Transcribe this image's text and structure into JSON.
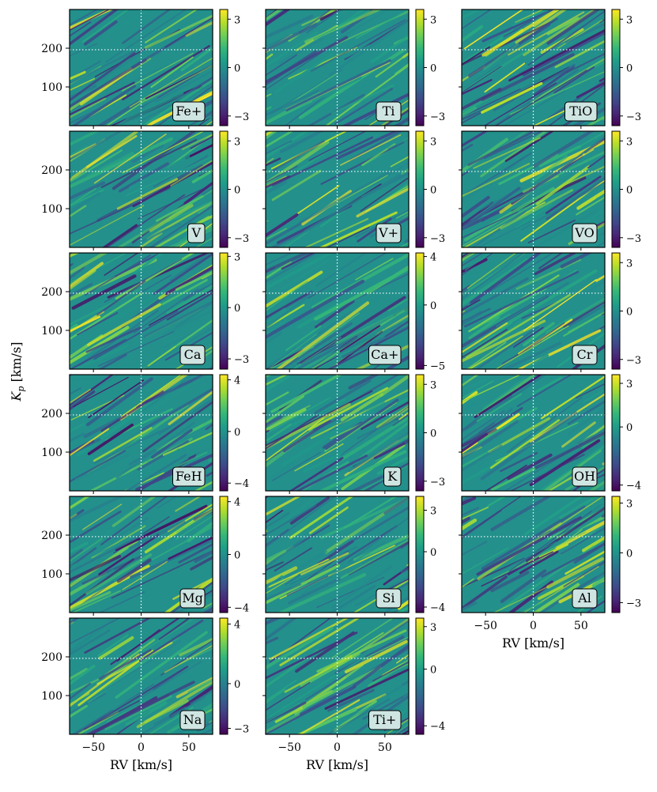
{
  "chart_data": {
    "type": "heatmap",
    "description": "Grid of Kp-RV cross-correlation significance maps, one per species",
    "x_axis": {
      "label": "RV [km/s]",
      "range": [
        -75,
        75
      ],
      "ticks": [
        -50,
        0,
        50
      ],
      "tick_labels": [
        "−50",
        "0",
        "50"
      ]
    },
    "y_axis": {
      "label": "K_p [km/s]",
      "label_main": "K",
      "label_sub": "p",
      "label_units": " [km/s]",
      "range": [
        0,
        300
      ],
      "ticks": [
        100,
        200
      ],
      "tick_labels": [
        "100",
        "200"
      ]
    },
    "markers": {
      "rv": 0,
      "kp": 196
    },
    "colormap": {
      "name": "viridis",
      "stops": [
        "#440154",
        "#482878",
        "#3e4a89",
        "#31688e",
        "#26828e",
        "#1f9e89",
        "#35b779",
        "#6ece58",
        "#b5de2b",
        "#fde725"
      ]
    },
    "panels": [
      {
        "species": "Fe+",
        "cb_range": [
          -3.6,
          3.6
        ],
        "cb_ticks": [
          3,
          0,
          -3
        ],
        "cb_tick_labels": [
          "3",
          "0",
          "−3"
        ]
      },
      {
        "species": "Ti",
        "cb_range": [
          -3.6,
          3.6
        ],
        "cb_ticks": [
          3,
          0,
          -3
        ],
        "cb_tick_labels": [
          "3",
          "0",
          "−3"
        ]
      },
      {
        "species": "TiO",
        "cb_range": [
          -3.6,
          3.6
        ],
        "cb_ticks": [
          3,
          0,
          -3
        ],
        "cb_tick_labels": [
          "3",
          "0",
          "−3"
        ]
      },
      {
        "species": "V",
        "cb_range": [
          -3.6,
          3.6
        ],
        "cb_ticks": [
          3,
          0,
          -3
        ],
        "cb_tick_labels": [
          "3",
          "0",
          "−3"
        ]
      },
      {
        "species": "V+",
        "cb_range": [
          -3.6,
          3.6
        ],
        "cb_ticks": [
          3,
          0,
          -3
        ],
        "cb_tick_labels": [
          "3",
          "0",
          "−3"
        ]
      },
      {
        "species": "VO",
        "cb_range": [
          -3.6,
          3.6
        ],
        "cb_ticks": [
          3,
          0,
          -3
        ],
        "cb_tick_labels": [
          "3",
          "0",
          "−3"
        ]
      },
      {
        "species": "Ca",
        "cb_range": [
          -3.6,
          3.2
        ],
        "cb_ticks": [
          3,
          0,
          -3
        ],
        "cb_tick_labels": [
          "3",
          "0",
          "−3"
        ]
      },
      {
        "species": "Ca+",
        "cb_range": [
          -5.3,
          4.3
        ],
        "cb_ticks": [
          4,
          0,
          -5
        ],
        "cb_tick_labels": [
          "4",
          "0",
          "−5"
        ]
      },
      {
        "species": "Cr",
        "cb_range": [
          -3.6,
          3.6
        ],
        "cb_ticks": [
          3,
          0,
          -3
        ],
        "cb_tick_labels": [
          "3",
          "0",
          "−3"
        ]
      },
      {
        "species": "FeH",
        "cb_range": [
          -4.6,
          4.4
        ],
        "cb_ticks": [
          4,
          0,
          -4
        ],
        "cb_tick_labels": [
          "4",
          "0",
          "−4"
        ]
      },
      {
        "species": "K",
        "cb_range": [
          -3.6,
          3.6
        ],
        "cb_ticks": [
          3,
          0,
          -3
        ],
        "cb_tick_labels": [
          "3",
          "0",
          "−3"
        ]
      },
      {
        "species": "OH",
        "cb_range": [
          -4.4,
          3.6
        ],
        "cb_ticks": [
          3,
          0,
          -4
        ],
        "cb_tick_labels": [
          "3",
          "0",
          "−4"
        ]
      },
      {
        "species": "Mg",
        "cb_range": [
          -4.4,
          4.4
        ],
        "cb_ticks": [
          4,
          0,
          -4
        ],
        "cb_tick_labels": [
          "4",
          "0",
          "−4"
        ]
      },
      {
        "species": "Si",
        "cb_range": [
          -4.4,
          4.0
        ],
        "cb_ticks": [
          3,
          0,
          -4
        ],
        "cb_tick_labels": [
          "3",
          "0",
          "−4"
        ]
      },
      {
        "species": "Al",
        "cb_range": [
          -3.6,
          3.4
        ],
        "cb_ticks": [
          3,
          0,
          -3
        ],
        "cb_tick_labels": [
          "3",
          "0",
          "−3"
        ]
      },
      {
        "species": "Na",
        "cb_range": [
          -3.4,
          4.4
        ],
        "cb_ticks": [
          4,
          0,
          -3
        ],
        "cb_tick_labels": [
          "4",
          "0",
          "−3"
        ]
      },
      {
        "species": "Ti+",
        "cb_range": [
          -4.6,
          3.6
        ],
        "cb_ticks": [
          3,
          0,
          -4
        ],
        "cb_tick_labels": [
          "3",
          "0",
          "−4"
        ]
      }
    ]
  }
}
